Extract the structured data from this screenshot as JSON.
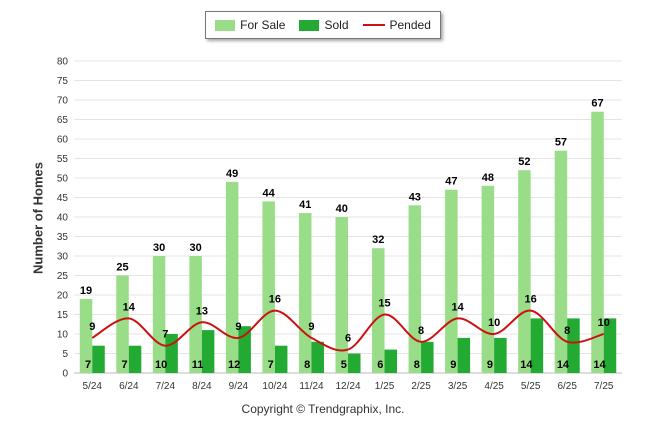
{
  "chart_data": {
    "type": "bar",
    "categories": [
      "5/24",
      "6/24",
      "7/24",
      "8/24",
      "9/24",
      "10/24",
      "11/24",
      "12/24",
      "1/25",
      "2/25",
      "3/25",
      "4/25",
      "5/25",
      "6/25",
      "7/25"
    ],
    "series": [
      {
        "name": "For Sale",
        "type": "bar",
        "color": "#99dd88",
        "values": [
          19,
          25,
          30,
          30,
          49,
          44,
          41,
          40,
          32,
          43,
          47,
          48,
          52,
          57,
          67
        ]
      },
      {
        "name": "Sold",
        "type": "bar",
        "color": "#22aa33",
        "values": [
          7,
          7,
          10,
          11,
          12,
          7,
          8,
          5,
          6,
          8,
          9,
          9,
          14,
          14,
          14
        ]
      },
      {
        "name": "Pended",
        "type": "line",
        "color": "#cc1111",
        "values": [
          9,
          14,
          7,
          13,
          9,
          16,
          9,
          6,
          15,
          8,
          14,
          10,
          16,
          8,
          10
        ]
      }
    ],
    "ylabel": "Number of Homes",
    "xlabel": "",
    "ylim": [
      0,
      80
    ],
    "yticks": [
      0,
      5,
      10,
      15,
      20,
      25,
      30,
      35,
      40,
      45,
      50,
      55,
      60,
      65,
      70,
      75,
      80
    ],
    "grid": true,
    "legend_position": "top-center",
    "credit": "Copyright © Trendgraphix, Inc."
  }
}
